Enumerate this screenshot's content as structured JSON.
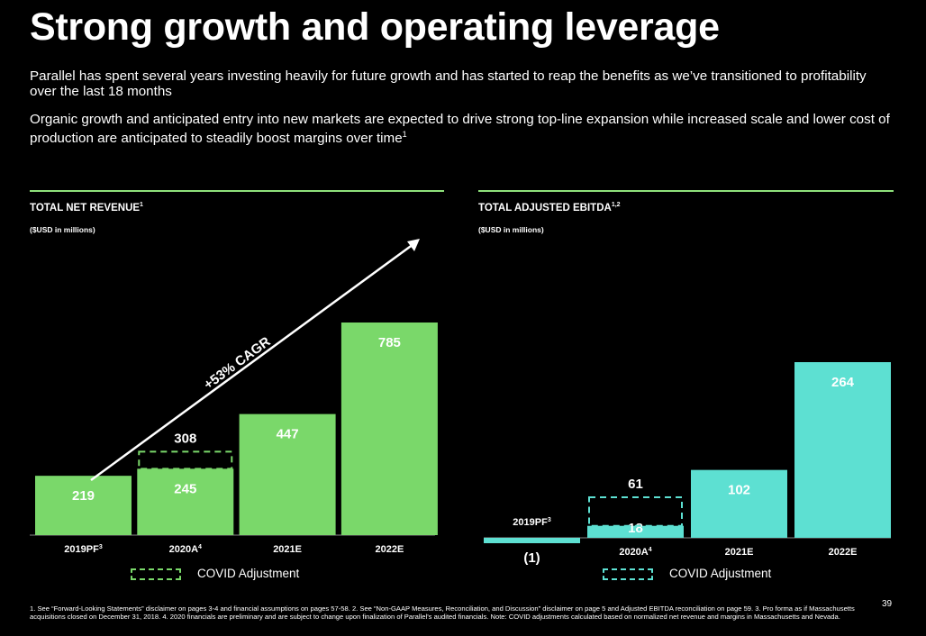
{
  "title": "Strong growth and operating leverage",
  "intro": [
    {
      "text": "Parallel has spent several years investing heavily for future growth and has started to reap the benefits as we’ve transitioned to profitability over the last 18 months",
      "sup": ""
    },
    {
      "text": "Organic growth and anticipated entry into new markets are expected to drive strong top-line expansion while increased scale and lower cost of production are anticipated to steadily boost margins over time",
      "sup": "1"
    }
  ],
  "colors": {
    "revenue": "#7ad86a",
    "ebitda": "#5de0d2",
    "rule": "#8ee07a",
    "axis": "#888888"
  },
  "chart_data": [
    {
      "type": "bar",
      "title": "TOTAL NET REVENUE",
      "title_sup": "1",
      "subtitle": "($USD in millions)",
      "categories": [
        "2019PF",
        "2020A",
        "2021E",
        "2022E"
      ],
      "category_sups": [
        "3",
        "4",
        "",
        ""
      ],
      "values": [
        219,
        245,
        447,
        785
      ],
      "value_labels": [
        "219",
        "245",
        "447",
        "785"
      ],
      "covid_adjusted": [
        null,
        308,
        null,
        null
      ],
      "covid_labels": [
        "",
        "308",
        "",
        ""
      ],
      "annotation": "+53% CAGR",
      "legend": "COVID Adjustment",
      "ylim": [
        0,
        800
      ]
    },
    {
      "type": "bar",
      "title": "TOTAL ADJUSTED EBITDA",
      "title_sup": "1,2",
      "subtitle": "($USD in millions)",
      "categories": [
        "2019PF",
        "2020A",
        "2021E",
        "2022E"
      ],
      "category_sups": [
        "3",
        "4",
        "",
        ""
      ],
      "values": [
        -1,
        18,
        102,
        264
      ],
      "value_labels": [
        "(1)",
        "18",
        "102",
        "264"
      ],
      "covid_adjusted": [
        null,
        61,
        null,
        null
      ],
      "covid_labels": [
        "",
        "61",
        "",
        ""
      ],
      "legend": "COVID Adjustment",
      "ylim": [
        0,
        264
      ]
    }
  ],
  "footnote": "1. See “Forward-Looking Statements” disclaimer on pages 3-4 and financial assumptions on pages 57-58. 2. See “Non-GAAP Measures, Reconciliation, and Discussion” disclaimer on page 5 and Adjusted EBITDA reconciliation on page 59. 3. Pro forma as if Massachusetts acquisitions closed on December 31, 2018. 4. 2020 financials are preliminary and are subject to change upon finalization of Parallel’s audited financials. Note: COVID adjustments calculated based on normalized net revenue and margins in Massachusetts and Nevada.",
  "page_number": "39"
}
